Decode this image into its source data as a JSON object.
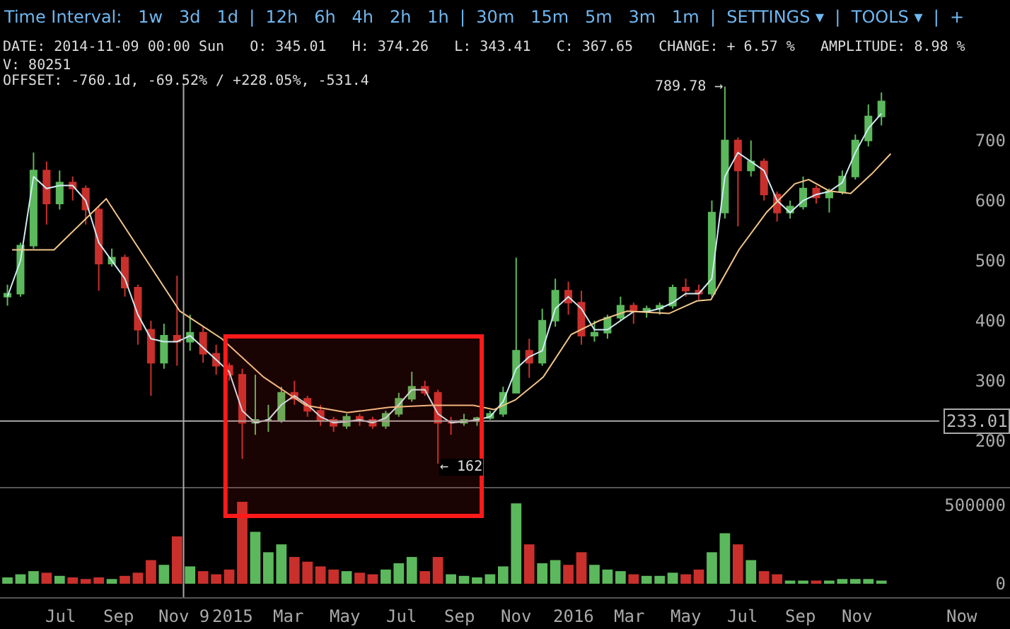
{
  "chart_data": [
    {
      "type": "candlestick",
      "annotations": [
        "Time Interval:   1w   3d   1d  |  12h   6h   4h   2h   1h  |  30m   15m   5m   3m   1m  |  SETTINGS ▾  |  TOOLS ▾  |  +",
        "DATE: 2014-11-09 00:00 Sun   O: 345.01   H: 374.26   L: 343.41   C: 367.65   CHANGE: + 6.57 %   AMPLITUDE: 8.98 %",
        "V: 80251",
        "OFFSET: -760.1d, -69.52% / +228.05%, -531.4",
        {
          "text": "789.78 →",
          "x": "2016-06-12",
          "y": 789.78
        },
        {
          "text": "← 162",
          "x": "2015-08-09",
          "y": 162
        }
      ],
      "x": [
        "2014-05-04",
        "2014-05-18",
        "2014-06-01",
        "2014-06-15",
        "2014-06-29",
        "2014-07-13",
        "2014-07-27",
        "2014-08-10",
        "2014-08-24",
        "2014-09-07",
        "2014-09-21",
        "2014-10-05",
        "2014-10-19",
        "2014-11-02",
        "2014-11-16",
        "2014-11-30",
        "2014-12-14",
        "2014-12-28",
        "2015-01-11",
        "2015-01-25",
        "2015-02-08",
        "2015-02-22",
        "2015-03-08",
        "2015-03-22",
        "2015-04-05",
        "2015-04-19",
        "2015-05-03",
        "2015-05-17",
        "2015-05-31",
        "2015-06-14",
        "2015-06-28",
        "2015-07-12",
        "2015-07-26",
        "2015-08-09",
        "2015-08-23",
        "2015-09-06",
        "2015-09-20",
        "2015-10-04",
        "2015-10-18",
        "2015-11-01",
        "2015-11-15",
        "2015-11-29",
        "2015-12-13",
        "2015-12-27",
        "2016-01-10",
        "2016-01-24",
        "2016-02-07",
        "2016-02-21",
        "2016-03-06",
        "2016-03-20",
        "2016-04-03",
        "2016-04-17",
        "2016-05-01",
        "2016-05-15",
        "2016-05-29",
        "2016-06-12",
        "2016-06-26",
        "2016-07-10",
        "2016-07-24",
        "2016-08-07",
        "2016-08-21",
        "2016-09-04",
        "2016-09-18",
        "2016-10-02",
        "2016-10-16",
        "2016-10-30",
        "2016-11-13",
        "2016-11-27"
      ],
      "ohlc": [
        [
          440,
          460,
          425,
          445
        ],
        [
          445,
          530,
          440,
          525
        ],
        [
          525,
          680,
          520,
          650
        ],
        [
          650,
          665,
          560,
          595
        ],
        [
          595,
          650,
          585,
          630
        ],
        [
          630,
          640,
          600,
          620
        ],
        [
          620,
          625,
          560,
          585
        ],
        [
          585,
          590,
          450,
          495
        ],
        [
          495,
          520,
          490,
          505
        ],
        [
          505,
          510,
          440,
          455
        ],
        [
          455,
          460,
          360,
          385
        ],
        [
          385,
          400,
          275,
          330
        ],
        [
          330,
          395,
          320,
          375
        ],
        [
          375,
          475,
          325,
          365
        ],
        [
          365,
          410,
          350,
          380
        ],
        [
          380,
          390,
          330,
          345
        ],
        [
          345,
          360,
          310,
          325
        ],
        [
          325,
          330,
          300,
          310
        ],
        [
          310,
          320,
          170,
          230
        ],
        [
          230,
          310,
          210,
          235
        ],
        [
          235,
          260,
          215,
          235
        ],
        [
          235,
          290,
          230,
          280
        ],
        [
          280,
          300,
          260,
          270
        ],
        [
          270,
          275,
          240,
          250
        ],
        [
          250,
          260,
          225,
          235
        ],
        [
          235,
          240,
          215,
          225
        ],
        [
          225,
          245,
          220,
          240
        ],
        [
          240,
          245,
          225,
          235
        ],
        [
          235,
          240,
          220,
          225
        ],
        [
          225,
          250,
          220,
          245
        ],
        [
          245,
          280,
          240,
          270
        ],
        [
          270,
          315,
          265,
          290
        ],
        [
          290,
          300,
          275,
          280
        ],
        [
          280,
          285,
          162,
          230
        ],
        [
          230,
          240,
          210,
          230
        ],
        [
          230,
          245,
          225,
          235
        ],
        [
          235,
          240,
          225,
          238
        ],
        [
          238,
          250,
          235,
          245
        ],
        [
          245,
          290,
          240,
          280
        ],
        [
          280,
          505,
          280,
          350
        ],
        [
          350,
          370,
          305,
          330
        ],
        [
          330,
          420,
          325,
          400
        ],
        [
          400,
          470,
          390,
          450
        ],
        [
          450,
          465,
          410,
          430
        ],
        [
          430,
          450,
          360,
          375
        ],
        [
          375,
          400,
          365,
          380
        ],
        [
          380,
          410,
          370,
          405
        ],
        [
          405,
          440,
          400,
          425
        ],
        [
          425,
          430,
          395,
          415
        ],
        [
          415,
          425,
          405,
          420
        ],
        [
          420,
          430,
          410,
          425
        ],
        [
          425,
          460,
          420,
          455
        ],
        [
          455,
          470,
          440,
          450
        ],
        [
          450,
          460,
          435,
          445
        ],
        [
          445,
          600,
          440,
          580
        ],
        [
          580,
          789.78,
          570,
          700
        ],
        [
          700,
          705,
          557,
          650
        ],
        [
          650,
          700,
          640,
          665
        ],
        [
          665,
          670,
          600,
          610
        ],
        [
          610,
          615,
          565,
          580
        ],
        [
          580,
          600,
          570,
          590
        ],
        [
          590,
          640,
          585,
          620
        ],
        [
          620,
          625,
          595,
          605
        ],
        [
          605,
          620,
          580,
          615
        ],
        [
          615,
          650,
          610,
          640
        ],
        [
          640,
          710,
          635,
          700
        ],
        [
          700,
          760,
          690,
          740
        ],
        [
          740,
          780,
          725,
          765
        ]
      ],
      "series": [
        {
          "type": "line",
          "color": "#cfeaf2",
          "values": [
            440,
            500,
            640,
            620,
            625,
            625,
            600,
            530,
            500,
            470,
            410,
            370,
            365,
            365,
            375,
            355,
            335,
            315,
            250,
            230,
            235,
            260,
            275,
            260,
            240,
            230,
            232,
            235,
            230,
            238,
            260,
            285,
            285,
            245,
            230,
            232,
            235,
            240,
            265,
            320,
            340,
            350,
            420,
            440,
            420,
            385,
            385,
            400,
            415,
            415,
            420,
            430,
            445,
            445,
            470,
            640,
            680,
            665,
            650,
            600,
            580,
            600,
            610,
            615,
            630,
            680,
            720,
            745
          ]
        },
        {
          "type": "line",
          "color": "#f2c58a",
          "x": [
            "2014-05-09",
            "2014-06-23",
            "2014-08-18",
            "2014-11-05",
            "2014-12-20",
            "2015-02-03",
            "2015-03-20",
            "2015-05-04",
            "2015-06-18",
            "2015-08-02",
            "2015-09-16",
            "2015-10-08",
            "2015-10-31",
            "2015-11-30",
            "2015-12-30",
            "2016-01-29",
            "2016-02-28",
            "2016-04-13",
            "2016-05-13",
            "2016-05-28",
            "2016-06-27",
            "2016-07-27",
            "2016-08-26",
            "2016-09-10",
            "2016-10-02",
            "2016-10-25",
            "2016-11-17",
            "2016-12-07"
          ],
          "values": [
            518,
            518,
            603,
            416,
            370,
            306,
            259,
            247,
            256,
            259,
            259,
            252,
            268,
            306,
            377,
            400,
            416,
            412,
            433,
            435,
            518,
            581,
            628,
            635,
            616,
            612,
            645,
            678
          ]
        }
      ],
      "xlim": [
        "2014-04-26",
        "2017-04-14"
      ],
      "ylim": [
        122,
        934
      ],
      "yticks": [
        200,
        300,
        400,
        500,
        600,
        700
      ],
      "tick_labels": "y",
      "ref_lines": [
        {
          "axis": "y",
          "value": 233.01,
          "label": "233.01",
          "color": "#aaaaaa"
        },
        {
          "axis": "x",
          "value": "2014-11-09",
          "color": "#aaaaaa"
        }
      ],
      "bands": [
        {
          "axis": "x",
          "from": "2014-12-24",
          "to": "2015-09-25",
          "color": "#ff1a1a"
        }
      ]
    },
    {
      "type": "bar",
      "x": [
        "2014-05-04",
        "2014-05-18",
        "2014-06-01",
        "2014-06-15",
        "2014-06-29",
        "2014-07-13",
        "2014-07-27",
        "2014-08-10",
        "2014-08-24",
        "2014-09-07",
        "2014-09-21",
        "2014-10-05",
        "2014-10-19",
        "2014-11-02",
        "2014-11-16",
        "2014-11-30",
        "2014-12-14",
        "2014-12-28",
        "2015-01-11",
        "2015-01-25",
        "2015-02-08",
        "2015-02-22",
        "2015-03-08",
        "2015-03-22",
        "2015-04-05",
        "2015-04-19",
        "2015-05-03",
        "2015-05-17",
        "2015-05-31",
        "2015-06-14",
        "2015-06-28",
        "2015-07-12",
        "2015-07-26",
        "2015-08-09",
        "2015-08-23",
        "2015-09-06",
        "2015-09-20",
        "2015-10-04",
        "2015-10-18",
        "2015-11-01",
        "2015-11-15",
        "2015-11-29",
        "2015-12-13",
        "2015-12-27",
        "2016-01-10",
        "2016-01-24",
        "2016-02-07",
        "2016-02-21",
        "2016-03-06",
        "2016-03-20",
        "2016-04-03",
        "2016-04-17",
        "2016-05-01",
        "2016-05-15",
        "2016-05-29",
        "2016-06-12",
        "2016-06-26",
        "2016-07-10",
        "2016-07-24",
        "2016-08-07",
        "2016-08-21",
        "2016-09-04",
        "2016-09-18",
        "2016-10-02",
        "2016-10-16",
        "2016-10-30",
        "2016-11-13",
        "2016-11-27"
      ],
      "values": [
        40000,
        60000,
        80000,
        70000,
        50000,
        40000,
        30000,
        40000,
        30000,
        50000,
        70000,
        150000,
        120000,
        300000,
        110000,
        80000,
        60000,
        90000,
        520000,
        330000,
        200000,
        250000,
        170000,
        140000,
        110000,
        90000,
        80000,
        70000,
        60000,
        90000,
        130000,
        170000,
        80000,
        170000,
        60000,
        50000,
        40000,
        60000,
        110000,
        510000,
        250000,
        130000,
        150000,
        120000,
        200000,
        120000,
        90000,
        80000,
        60000,
        50000,
        50000,
        70000,
        60000,
        90000,
        200000,
        320000,
        250000,
        150000,
        80000,
        60000,
        20000,
        20000,
        20000,
        20000,
        30000,
        30000,
        30000,
        20000
      ],
      "colors": [
        "#5cb85c",
        "#5cb85c",
        "#5cb85c",
        "#c9302c",
        "#5cb85c",
        "#c9302c",
        "#c9302c",
        "#c9302c",
        "#5cb85c",
        "#c9302c",
        "#c9302c",
        "#c9302c",
        "#5cb85c",
        "#c9302c",
        "#5cb85c",
        "#c9302c",
        "#c9302c",
        "#c9302c",
        "#c9302c",
        "#5cb85c",
        "#5cb85c",
        "#5cb85c",
        "#c9302c",
        "#c9302c",
        "#c9302c",
        "#c9302c",
        "#5cb85c",
        "#c9302c",
        "#c9302c",
        "#5cb85c",
        "#5cb85c",
        "#5cb85c",
        "#c9302c",
        "#c9302c",
        "#5cb85c",
        "#5cb85c",
        "#5cb85c",
        "#5cb85c",
        "#5cb85c",
        "#5cb85c",
        "#c9302c",
        "#5cb85c",
        "#5cb85c",
        "#c9302c",
        "#c9302c",
        "#5cb85c",
        "#5cb85c",
        "#5cb85c",
        "#c9302c",
        "#5cb85c",
        "#5cb85c",
        "#5cb85c",
        "#c9302c",
        "#c9302c",
        "#5cb85c",
        "#5cb85c",
        "#c9302c",
        "#5cb85c",
        "#c9302c",
        "#c9302c",
        "#5cb85c",
        "#5cb85c",
        "#c9302c",
        "#5cb85c",
        "#5cb85c",
        "#5cb85c",
        "#5cb85c",
        "#5cb85c"
      ],
      "xlim": [
        "2014-04-26",
        "2017-04-14"
      ],
      "xticks": [
        {
          "value": "2014-07-01",
          "label": "Jul"
        },
        {
          "value": "2014-09-01",
          "label": "Sep"
        },
        {
          "value": "2014-11-09",
          "label": "Nov 9"
        },
        {
          "value": "2015-01-01",
          "label": "2015"
        },
        {
          "value": "2015-03-01",
          "label": "Mar"
        },
        {
          "value": "2015-05-01",
          "label": "May"
        },
        {
          "value": "2015-07-01",
          "label": "Jul"
        },
        {
          "value": "2015-09-01",
          "label": "Sep"
        },
        {
          "value": "2015-11-01",
          "label": "Nov"
        },
        {
          "value": "2016-01-01",
          "label": "2016"
        },
        {
          "value": "2016-03-01",
          "label": "Mar"
        },
        {
          "value": "2016-05-01",
          "label": "May"
        },
        {
          "value": "2016-07-01",
          "label": "Jul"
        },
        {
          "value": "2016-09-01",
          "label": "Sep"
        },
        {
          "value": "2016-11-01",
          "label": "Nov"
        },
        {
          "value": "2017-02-22",
          "label": "Now"
        }
      ],
      "ylim": [
        -90000,
        610000
      ],
      "yticks": [
        0,
        500000
      ]
    }
  ]
}
